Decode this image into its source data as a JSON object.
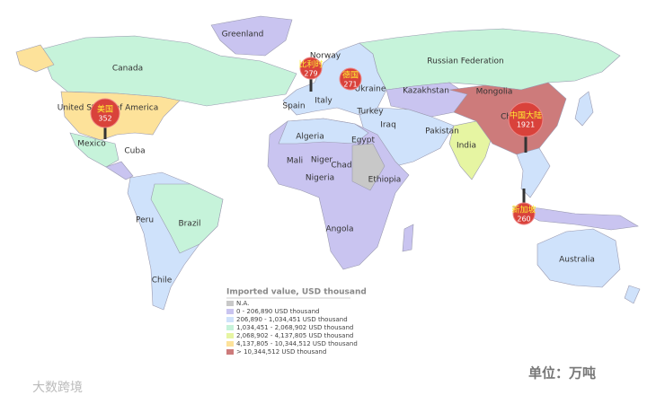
{
  "map": {
    "country_labels": [
      "Greenland",
      "Canada",
      "United States of America",
      "Mexico",
      "Cuba",
      "Norway",
      "Russian Federation",
      "Kazakhstan",
      "Mongolia",
      "Ukraine",
      "Spain",
      "Italy",
      "Turkey",
      "Iraq",
      "Algeria",
      "Egypt",
      "Pakistan",
      "India",
      "China",
      "Mali",
      "Niger",
      "Chad",
      "Nigeria",
      "Ethiopia",
      "Angola",
      "Peru",
      "Brazil",
      "Chile",
      "Australia"
    ],
    "markers": [
      {
        "name": "美国",
        "value": 352
      },
      {
        "name": "比利时",
        "value": 279
      },
      {
        "name": "德国",
        "value": 271
      },
      {
        "name": "中国大陆",
        "value": 1921
      },
      {
        "name": "新加坡",
        "value": 260
      }
    ],
    "legend": {
      "title": "Imported value, USD thousand",
      "items": [
        {
          "label": "N.A.",
          "color": "#c8c8c8"
        },
        {
          "label": "0 - 206,890 USD thousand",
          "color": "#c9c4f0"
        },
        {
          "label": "206,890 - 1,034,451 USD thousand",
          "color": "#cfe2fb"
        },
        {
          "label": "1,034,451 - 2,068,902 USD thousand",
          "color": "#c6f3da"
        },
        {
          "label": "2,068,902 - 4,137,805 USD thousand",
          "color": "#e6f5a2"
        },
        {
          "label": "4,137,805 - 10,344,512 USD thousand",
          "color": "#fde29a"
        },
        {
          "label": "> 10,344,512 USD thousand",
          "color": "#cd7b7b"
        }
      ]
    },
    "unit": "单位：万吨",
    "watermark": "大数跨境"
  }
}
